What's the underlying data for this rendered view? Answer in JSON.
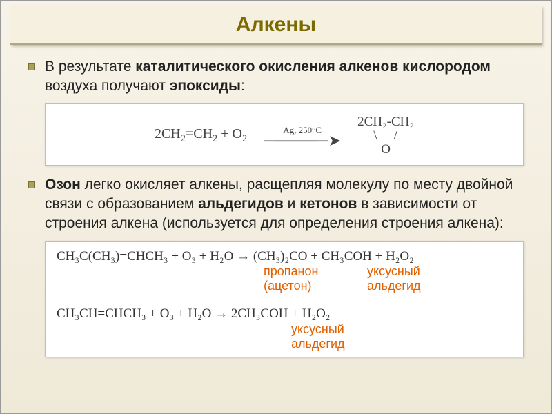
{
  "title": "Алкены",
  "bullet1_pre": "В результате ",
  "bullet1_b1": "каталитического окисления алкенов кислородом",
  "bullet1_mid": " воздуха получают ",
  "bullet1_b2": "эпоксиды",
  "bullet1_post": ":",
  "eq1_left": "2CH",
  "eq1_left2": "=CH",
  "eq1_left3": " + O",
  "eq1_cond": "Ag, 250°C",
  "epox_r1": "2CH₂-CH₂",
  "epox_r2": "\\    /",
  "epox_r3": "O",
  "bullet2_b1": "Озон",
  "bullet2_t1": " легко окисляет алкены, расщепляя молекулу по месту двойной связи с образованием ",
  "bullet2_b2": "альдегидов",
  "bullet2_t2": " и ",
  "bullet2_b3": "кетонов",
  "bullet2_t3": " в зависимости от строения алкена (используется для определения строения алкена):",
  "eq2_line1": "CH₃C(CH₃)=CHCH₃ + O₃ + H₂O → (CH₃)₂CO + CH₃COH + H₂O₂",
  "lbl_propanon": "пропанон",
  "lbl_aceton": "(ацетон)",
  "lbl_uksus": "уксусный",
  "lbl_aldehyde": "альдегид",
  "eq2_line2": "CH₃CH=CHCH₃ + O₃ + H₂O → 2CH₃COH + H₂O₂",
  "colors": {
    "title_color": "#7a6a00",
    "label_color": "#e06000",
    "bg_top": "#f7f3e8",
    "bg_bottom": "#efe9d8",
    "box_bg": "#ffffff",
    "box_border": "#c5bfa8",
    "bullet_fill": "#a99f5f"
  }
}
